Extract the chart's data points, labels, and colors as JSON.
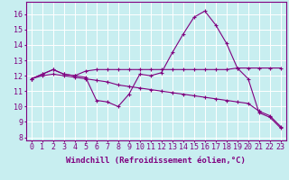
{
  "background_color": "#c8eef0",
  "grid_color": "#ffffff",
  "line_color": "#800080",
  "tick_color": "#800080",
  "xlabel": "Windchill (Refroidissement éolien,°C)",
  "xlabel_fontsize": 6.5,
  "tick_fontsize": 6,
  "x_ticks": [
    0,
    1,
    2,
    3,
    4,
    5,
    6,
    7,
    8,
    9,
    10,
    11,
    12,
    13,
    14,
    15,
    16,
    17,
    18,
    19,
    20,
    21,
    22,
    23
  ],
  "y_ticks": [
    8,
    9,
    10,
    11,
    12,
    13,
    14,
    15,
    16
  ],
  "ylim": [
    7.8,
    16.8
  ],
  "xlim": [
    -0.5,
    23.5
  ],
  "series": [
    [
      11.8,
      12.1,
      12.4,
      12.1,
      12.0,
      11.9,
      10.4,
      10.3,
      10.0,
      10.8,
      12.1,
      12.0,
      12.2,
      13.5,
      14.7,
      15.8,
      16.2,
      15.3,
      14.1,
      12.5,
      11.8,
      9.6,
      9.3,
      8.6
    ],
    [
      11.8,
      12.1,
      12.4,
      12.1,
      12.0,
      12.3,
      12.4,
      12.4,
      12.4,
      12.4,
      12.4,
      12.4,
      12.4,
      12.4,
      12.4,
      12.4,
      12.4,
      12.4,
      12.4,
      12.5,
      12.5,
      12.5,
      12.5,
      12.5
    ],
    [
      11.8,
      12.0,
      12.1,
      12.0,
      11.9,
      11.8,
      11.7,
      11.6,
      11.4,
      11.3,
      11.2,
      11.1,
      11.0,
      10.9,
      10.8,
      10.7,
      10.6,
      10.5,
      10.4,
      10.3,
      10.2,
      9.7,
      9.4,
      8.7
    ]
  ]
}
